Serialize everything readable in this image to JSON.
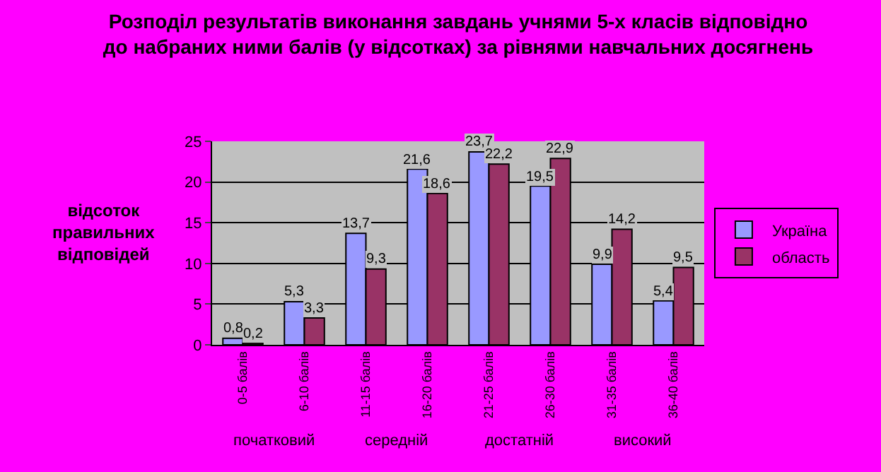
{
  "chart_data": {
    "type": "bar",
    "title": "Розподіл результатів виконання завдань учнями 5-х класів відповідно до набраних ними балів (у відсотках) за рівнями навчальних досягнень",
    "ylabel": "відсоток правильних відповідей",
    "categories": [
      "0-5 балів",
      "6-10 балів",
      "11-15 балів",
      "16-20 балів",
      "21-25 балів",
      "26-30 балів",
      "31-35 балів",
      "36-40 балів"
    ],
    "series": [
      {
        "name": "Україна",
        "color": "#9999ff",
        "values": [
          0.8,
          5.3,
          13.7,
          21.6,
          23.7,
          19.5,
          9.9,
          5.4
        ],
        "value_labels": [
          "0,8",
          "5,3",
          "13,7",
          "21,6",
          "23,7",
          "19,5",
          "9,9",
          "5,4"
        ]
      },
      {
        "name": "область",
        "color": "#993366",
        "values": [
          0.2,
          3.3,
          9.3,
          18.6,
          22.2,
          22.9,
          14.2,
          9.5
        ],
        "value_labels": [
          "0,2",
          "3,3",
          "9,3",
          "18,6",
          "22,2",
          "22,9",
          "14,2",
          "9,5"
        ]
      }
    ],
    "annotations": [
      "початковий",
      "середній",
      "достатній",
      "високий"
    ],
    "ylim": [
      0,
      25
    ],
    "yticks": [
      0,
      5,
      10,
      15,
      20,
      25
    ],
    "grid": "y",
    "legend": "right"
  }
}
